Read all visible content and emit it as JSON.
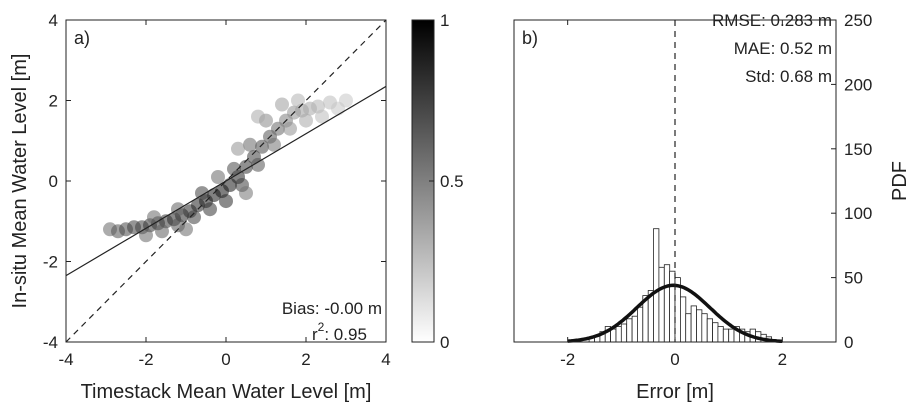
{
  "chart_data": [
    {
      "panel": "a)",
      "type": "scatter",
      "xlabel": "Timestack Mean Water Level [m]",
      "ylabel": "In-situ Mean Water Level [m]",
      "xlim": [
        -4,
        4
      ],
      "ylim": [
        -4,
        4
      ],
      "xticks": [
        "-4",
        "-2",
        "0",
        "2",
        "4"
      ],
      "yticks": [
        "-4",
        "-2",
        "0",
        "2",
        "4"
      ],
      "one_to_one_line": {
        "style": "dashed",
        "x": [
          -4,
          4
        ],
        "y": [
          -4,
          4
        ]
      },
      "fit_line": {
        "style": "solid",
        "x": [
          -4,
          4
        ],
        "y": [
          -2.35,
          2.35
        ]
      },
      "annotations": {
        "bias": "Bias: -0.00 m",
        "r2_prefix": "r",
        "r2_sup": "2",
        "r2_value": ": 0.95"
      },
      "colorbar": {
        "range": [
          0,
          1
        ],
        "ticks": [
          "0",
          "0.5",
          "1"
        ],
        "colormap": "white-to-black density"
      },
      "points": [
        [
          -2.9,
          -1.2,
          0.6
        ],
        [
          -2.7,
          -1.25,
          0.7
        ],
        [
          -2.5,
          -1.2,
          0.75
        ],
        [
          -2.3,
          -1.15,
          0.8
        ],
        [
          -2.1,
          -1.15,
          0.8
        ],
        [
          -1.9,
          -1.1,
          0.85
        ],
        [
          -1.7,
          -1.05,
          0.85
        ],
        [
          -1.5,
          -1.0,
          0.85
        ],
        [
          -1.3,
          -0.95,
          0.9
        ],
        [
          -1.1,
          -0.85,
          0.9
        ],
        [
          -0.9,
          -0.75,
          0.9
        ],
        [
          -0.7,
          -0.6,
          0.92
        ],
        [
          -0.5,
          -0.5,
          0.95
        ],
        [
          -0.3,
          -0.35,
          0.97
        ],
        [
          -0.1,
          -0.25,
          1.0
        ],
        [
          0.1,
          -0.1,
          0.97
        ],
        [
          0.3,
          0.1,
          0.92
        ],
        [
          0.5,
          0.35,
          0.85
        ],
        [
          0.7,
          0.6,
          0.8
        ],
        [
          0.9,
          0.85,
          0.75
        ],
        [
          1.1,
          1.1,
          0.7
        ],
        [
          1.3,
          1.3,
          0.6
        ],
        [
          1.5,
          1.5,
          0.5
        ],
        [
          1.7,
          1.7,
          0.4
        ],
        [
          1.9,
          1.75,
          0.35
        ],
        [
          2.1,
          1.8,
          0.3
        ],
        [
          2.3,
          1.85,
          0.25
        ],
        [
          2.6,
          1.95,
          0.2
        ],
        [
          3.0,
          2.0,
          0.15
        ],
        [
          -2.0,
          -1.35,
          0.6
        ],
        [
          -1.6,
          -1.25,
          0.65
        ],
        [
          -1.2,
          -1.1,
          0.7
        ],
        [
          -0.8,
          -0.9,
          0.8
        ],
        [
          -0.4,
          -0.7,
          0.85
        ],
        [
          0.0,
          -0.5,
          0.9
        ],
        [
          0.4,
          -0.1,
          0.8
        ],
        [
          0.8,
          0.4,
          0.7
        ],
        [
          1.2,
          0.9,
          0.55
        ],
        [
          1.6,
          1.3,
          0.4
        ],
        [
          2.0,
          1.5,
          0.3
        ],
        [
          -1.8,
          -0.9,
          0.6
        ],
        [
          -1.2,
          -0.7,
          0.65
        ],
        [
          -0.6,
          -0.3,
          0.8
        ],
        [
          0.2,
          0.3,
          0.75
        ],
        [
          0.6,
          0.9,
          0.6
        ],
        [
          1.0,
          1.5,
          0.45
        ],
        [
          1.4,
          1.9,
          0.35
        ],
        [
          0.8,
          1.6,
          0.3
        ],
        [
          0.3,
          0.8,
          0.4
        ],
        [
          1.8,
          2.0,
          0.25
        ],
        [
          2.4,
          1.6,
          0.2
        ],
        [
          2.8,
          1.8,
          0.15
        ],
        [
          -0.2,
          0.1,
          0.6
        ],
        [
          0.5,
          -0.3,
          0.55
        ],
        [
          -1.0,
          -1.2,
          0.6
        ]
      ]
    },
    {
      "panel": "b)",
      "type": "bar",
      "xlabel": "Error [m]",
      "ylabel": "PDF",
      "xlim": [
        -3,
        3
      ],
      "ylim": [
        0,
        250
      ],
      "xticks": [
        "-2",
        "0",
        "2"
      ],
      "yticks": [
        "0",
        "50",
        "100",
        "150",
        "200",
        "250"
      ],
      "bin_width": 0.1,
      "bin_start": -1.6,
      "counts": [
        3,
        5,
        8,
        12,
        10,
        12,
        14,
        18,
        20,
        27,
        36,
        40,
        88,
        58,
        60,
        55,
        50,
        35,
        22,
        28,
        25,
        22,
        18,
        15,
        12,
        10,
        10,
        12,
        10,
        8,
        10,
        8,
        6,
        4
      ],
      "zero_line": {
        "style": "dashed",
        "x": 0
      },
      "normal_fit": {
        "mean": -0.03,
        "std": 0.68,
        "peak": 44
      },
      "annotations": {
        "rmse": "RMSE: 0.283 m",
        "mae": "MAE: 0.52 m",
        "std": "Std: 0.68 m"
      }
    }
  ]
}
